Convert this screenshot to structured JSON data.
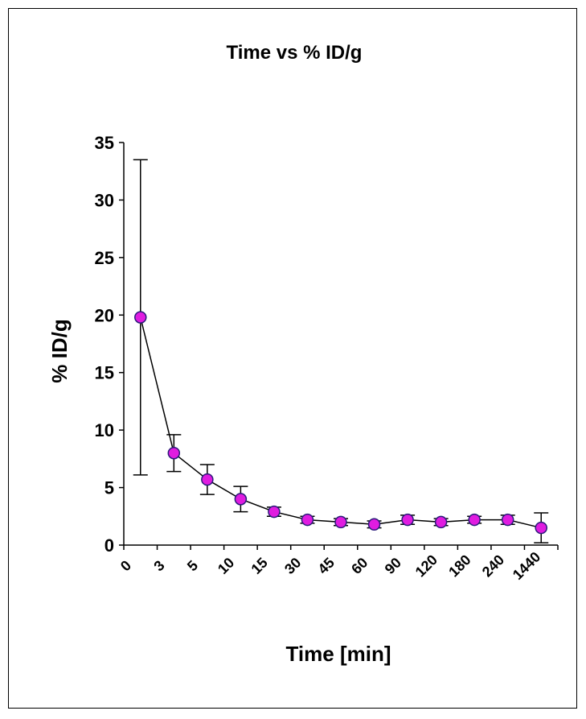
{
  "chart_data": {
    "type": "line",
    "title": "Time vs % ID/g",
    "xlabel": "Time [min]",
    "ylabel": "% ID/g",
    "categories": [
      "0",
      "3",
      "5",
      "10",
      "15",
      "30",
      "45",
      "60",
      "90",
      "120",
      "180",
      "240",
      "1440"
    ],
    "series": [
      {
        "values": [
          19.8,
          8.0,
          5.7,
          4.0,
          2.9,
          2.2,
          2.0,
          1.8,
          2.2,
          2.0,
          2.2,
          2.2,
          1.5
        ],
        "error": [
          13.7,
          1.6,
          1.3,
          1.1,
          0.4,
          0.3,
          0.3,
          0.3,
          0.4,
          0.3,
          0.3,
          0.4,
          1.3
        ]
      }
    ],
    "ylim": [
      0,
      35
    ],
    "yticks": [
      0,
      5,
      10,
      15,
      20,
      25,
      30,
      35
    ],
    "grid": false,
    "legend": "none",
    "colors": {
      "marker_fill": "#e01ce0",
      "marker_stroke": "#2a1a7a",
      "line": "#000000",
      "error_bar": "#000000"
    }
  }
}
